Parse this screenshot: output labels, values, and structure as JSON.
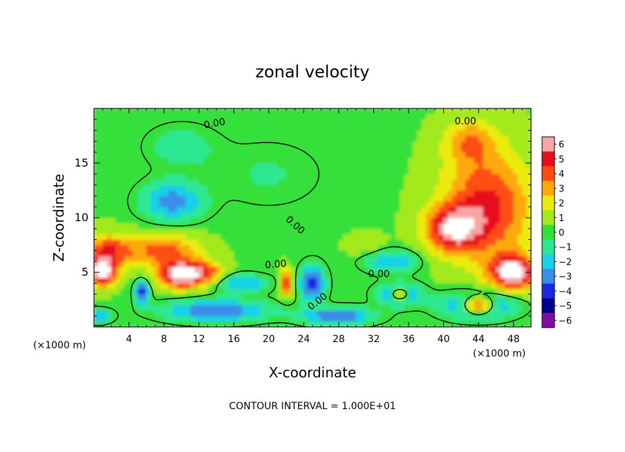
{
  "chart_data": {
    "type": "heatmap",
    "title": "zonal velocity",
    "xlabel": "X-coordinate",
    "ylabel": "Z-coordinate",
    "x_unit_label": "(×1000 m)",
    "x_unit_label_right": "(×1000 m)",
    "xlim": [
      0,
      50
    ],
    "ylim": [
      0,
      20
    ],
    "x_ticks": [
      4,
      8,
      12,
      16,
      20,
      24,
      28,
      32,
      36,
      40,
      44,
      48
    ],
    "y_ticks": [
      5,
      10,
      15
    ],
    "footer": "CONTOUR INTERVAL = 1.000E+01",
    "colorbar": {
      "ticks": [
        "6",
        "5",
        "4",
        "3",
        "2",
        "1",
        "0",
        "−1",
        "−2",
        "−3",
        "−4",
        "−5",
        "−6"
      ],
      "vmin": -6,
      "vmax": 6,
      "colors": [
        "#7f0fa0",
        "#00008f",
        "#1c28e0",
        "#3a8ee8",
        "#19d2e6",
        "#2ee891",
        "#35e03a",
        "#a2ea1f",
        "#eaea11",
        "#ffa80c",
        "#ff4d14",
        "#e80c1e",
        "#f7a5a5"
      ]
    },
    "contour_labels": [
      {
        "text": "0.00",
        "x": 13.8,
        "y": 18.6,
        "angle": -10
      },
      {
        "text": "0.00",
        "x": 42.5,
        "y": 18.8,
        "angle": 0
      },
      {
        "text": "0.00",
        "x": 23.0,
        "y": 9.3,
        "angle": 42
      },
      {
        "text": "0.00",
        "x": 20.8,
        "y": 5.7,
        "angle": -5
      },
      {
        "text": "0.00",
        "x": 32.6,
        "y": 4.8,
        "angle": 0
      },
      {
        "text": "0.00",
        "x": 25.6,
        "y": 2.3,
        "angle": -38
      }
    ],
    "field_features": [
      {
        "x": 9,
        "y": 11.5,
        "sx": 3.5,
        "sy": 1.8,
        "v": -3.5
      },
      {
        "x": 10,
        "y": 16.5,
        "sx": 4,
        "sy": 2,
        "v": -1.5
      },
      {
        "x": 20,
        "y": 14,
        "sx": 6,
        "sy": 3,
        "v": -1
      },
      {
        "x": 45,
        "y": 11,
        "sx": 5,
        "sy": 5,
        "v": 4.5
      },
      {
        "x": 43,
        "y": 17,
        "sx": 3,
        "sy": 2,
        "v": 2.5
      },
      {
        "x": 41,
        "y": 9,
        "sx": 3,
        "sy": 2,
        "v": 5
      },
      {
        "x": 1.5,
        "y": 7,
        "sx": 3,
        "sy": 1.5,
        "v": 4
      },
      {
        "x": 1,
        "y": 5,
        "sx": 1.5,
        "sy": 1.2,
        "v": 7
      },
      {
        "x": 10,
        "y": 4.8,
        "sx": 2.5,
        "sy": 1.2,
        "v": 7
      },
      {
        "x": 8,
        "y": 7,
        "sx": 4,
        "sy": 1.5,
        "v": 3.5
      },
      {
        "x": 48,
        "y": 5,
        "sx": 2.5,
        "sy": 1.5,
        "v": 7
      },
      {
        "x": 13,
        "y": 5,
        "sx": 2,
        "sy": 1,
        "v": 3
      },
      {
        "x": 25,
        "y": 4,
        "sx": 1.4,
        "sy": 1.6,
        "v": -5
      },
      {
        "x": 22,
        "y": 4,
        "sx": 0.7,
        "sy": 1.2,
        "v": 4
      },
      {
        "x": 34,
        "y": 6,
        "sx": 3,
        "sy": 1,
        "v": -3
      },
      {
        "x": 35,
        "y": 3,
        "sx": 2.5,
        "sy": 1,
        "v": -4
      },
      {
        "x": 35,
        "y": 3,
        "sx": 1,
        "sy": 0.5,
        "v": 6
      },
      {
        "x": 5.5,
        "y": 3.2,
        "sx": 0.8,
        "sy": 1,
        "v": -5
      },
      {
        "x": 14,
        "y": 1.5,
        "sx": 6,
        "sy": 1,
        "v": -4
      },
      {
        "x": 17,
        "y": 4,
        "sx": 3,
        "sy": 0.8,
        "v": -3
      },
      {
        "x": 28,
        "y": 1,
        "sx": 4,
        "sy": 0.8,
        "v": -4
      },
      {
        "x": 44,
        "y": 2,
        "sx": 4,
        "sy": 1.2,
        "v": -5
      },
      {
        "x": 44,
        "y": 2,
        "sx": 1.8,
        "sy": 0.8,
        "v": 8
      },
      {
        "x": 0.5,
        "y": 1,
        "sx": 1.5,
        "sy": 0.6,
        "v": -3
      },
      {
        "x": 31,
        "y": 7.5,
        "sx": 2,
        "sy": 1,
        "v": 1
      }
    ]
  }
}
